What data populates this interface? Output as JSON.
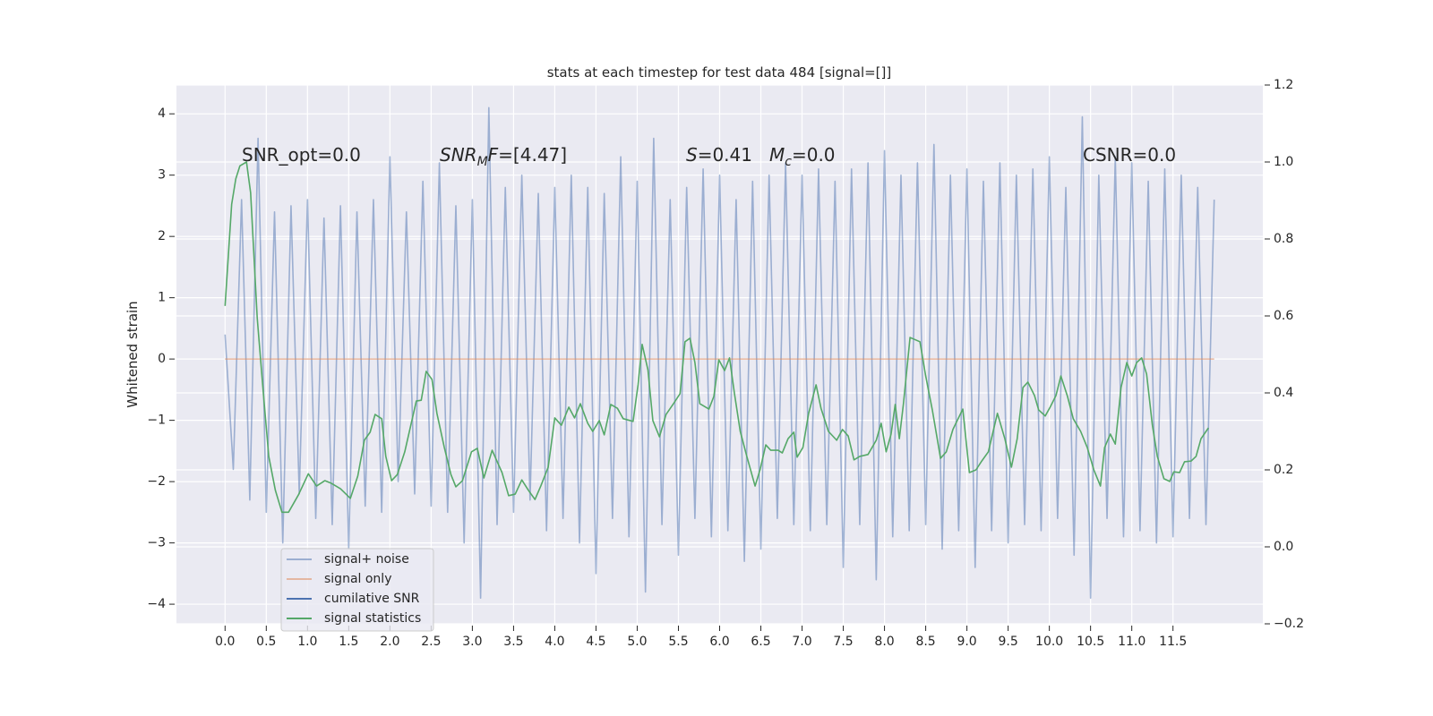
{
  "chart_data": {
    "type": "line",
    "title": "stats at each timestep for test data 484 [signal=[]]",
    "ylabel": "Whitened strain",
    "annotations": [
      [
        "SNR_opt=0.0"
      ],
      [
        "SNR",
        "M",
        "F",
        "=[4.47]"
      ],
      [
        "S",
        "=0.41"
      ],
      [
        "M",
        "c",
        "=0.0"
      ],
      [
        "CSNR=0.0"
      ]
    ],
    "xlim": [
      -0.59,
      12.59
    ],
    "ylim": [
      -4.32,
      4.47
    ],
    "y2lim": [
      -0.2,
      1.2
    ],
    "xticks": [
      {
        "value": 0,
        "label": "0.0"
      },
      {
        "value": 0.5,
        "label": "0.5"
      },
      {
        "value": 1,
        "label": "1.0"
      },
      {
        "value": 1.5,
        "label": "1.5"
      },
      {
        "value": 2,
        "label": "2.0"
      },
      {
        "value": 2.5,
        "label": "2.5"
      },
      {
        "value": 3,
        "label": "3.0"
      },
      {
        "value": 3.5,
        "label": "3.5"
      },
      {
        "value": 4,
        "label": "4.0"
      },
      {
        "value": 4.5,
        "label": "4.5"
      },
      {
        "value": 5,
        "label": "5.0"
      },
      {
        "value": 5.5,
        "label": "5.5"
      },
      {
        "value": 6,
        "label": "6.0"
      },
      {
        "value": 6.5,
        "label": "6.5"
      },
      {
        "value": 7,
        "label": "7.0"
      },
      {
        "value": 7.5,
        "label": "7.5"
      },
      {
        "value": 8,
        "label": "8.0"
      },
      {
        "value": 8.5,
        "label": "8.5"
      },
      {
        "value": 9,
        "label": "9.0"
      },
      {
        "value": 9.5,
        "label": "9.5"
      },
      {
        "value": 10,
        "label": "10.0"
      },
      {
        "value": 10.5,
        "label": "10.5"
      },
      {
        "value": 11,
        "label": "11.0"
      },
      {
        "value": 11.5,
        "label": "11.5"
      }
    ],
    "yticks": [
      {
        "value": -4,
        "label": "−4"
      },
      {
        "value": -3,
        "label": "−3"
      },
      {
        "value": -2,
        "label": "−2"
      },
      {
        "value": -1,
        "label": "−1"
      },
      0,
      1,
      2,
      3,
      4
    ],
    "y2ticks": [
      {
        "value": -0.2,
        "label": "−0.2"
      },
      {
        "value": 0,
        "label": "0.0"
      },
      {
        "value": 0.2,
        "label": "0.2"
      },
      {
        "value": 0.4,
        "label": "0.4"
      },
      {
        "value": 0.6,
        "label": "0.6"
      },
      {
        "value": 0.8,
        "label": "0.8"
      },
      {
        "value": 1,
        "label": "1.0"
      },
      {
        "value": 1.2,
        "label": "1.2"
      }
    ],
    "grid": true,
    "legend": "lower left",
    "series": [
      {
        "name": "signal+ noise",
        "color": "#4c72b0",
        "alpha": 0.5,
        "x": [
          0,
          0.1,
          0.2,
          0.3,
          0.4,
          0.5,
          0.6,
          0.7,
          0.8,
          0.9,
          1,
          1.1,
          1.2,
          1.3,
          1.4,
          1.5,
          1.6,
          1.7,
          1.8,
          1.9,
          2,
          2.1,
          2.2,
          2.3,
          2.4,
          2.5,
          2.6,
          2.7,
          2.8,
          2.9,
          3,
          3.1,
          3.2,
          3.3,
          3.4,
          3.5,
          3.6,
          3.7,
          3.8,
          3.9,
          4,
          4.1,
          4.2,
          4.3,
          4.4,
          4.5,
          4.6,
          4.7,
          4.8,
          4.9,
          5,
          5.1,
          5.2,
          5.3,
          5.4,
          5.5,
          5.6,
          5.7,
          5.8,
          5.9,
          6,
          6.1,
          6.2,
          6.3,
          6.4,
          6.5,
          6.6,
          6.7,
          6.8,
          6.9,
          7,
          7.1,
          7.2,
          7.3,
          7.4,
          7.5,
          7.6,
          7.7,
          7.8,
          7.9,
          8,
          8.1,
          8.2,
          8.3,
          8.4,
          8.5,
          8.6,
          8.7,
          8.8,
          8.9,
          9,
          9.1,
          9.2,
          9.3,
          9.4,
          9.5,
          9.6,
          9.7,
          9.8,
          9.9,
          10,
          10.1,
          10.2,
          10.3,
          10.4,
          10.5,
          10.6,
          10.7,
          10.8,
          10.9,
          11,
          11.1,
          11.2,
          11.3,
          11.4,
          11.5,
          11.6,
          11.7,
          11.8,
          11.9,
          12
        ],
        "values": [
          0.4,
          -1.8,
          2.6,
          -2.3,
          3.6,
          -2.5,
          2.4,
          -3.0,
          2.5,
          -2.2,
          2.6,
          -2.6,
          2.3,
          -2.7,
          2.5,
          -3.1,
          2.4,
          -2.4,
          2.6,
          -2.5,
          3.3,
          -2.0,
          2.4,
          -2.2,
          2.9,
          -2.4,
          3.2,
          -2.5,
          2.5,
          -3.0,
          2.6,
          -3.9,
          4.1,
          -2.7,
          2.8,
          -2.5,
          3.0,
          -2.3,
          2.7,
          -2.8,
          2.8,
          -2.6,
          3.0,
          -3.0,
          2.8,
          -3.5,
          2.7,
          -2.6,
          3.3,
          -2.9,
          2.9,
          -3.8,
          3.6,
          -2.7,
          2.6,
          -3.2,
          2.8,
          -2.6,
          3.1,
          -2.9,
          3.0,
          -2.8,
          2.6,
          -3.3,
          2.9,
          -3.1,
          3.0,
          -2.6,
          3.2,
          -2.7,
          3.0,
          -2.8,
          3.1,
          -2.7,
          2.9,
          -3.4,
          3.1,
          -2.7,
          3.2,
          -3.6,
          3.4,
          -2.9,
          3.0,
          -2.8,
          3.2,
          -2.7,
          3.5,
          -3.1,
          3.0,
          -2.8,
          3.1,
          -3.4,
          2.9,
          -2.8,
          3.2,
          -3.0,
          3.0,
          -2.7,
          3.1,
          -2.8,
          3.3,
          -2.6,
          2.8,
          -3.2,
          3.95,
          -3.9,
          3.0,
          -2.6,
          3.3,
          -2.9,
          3.2,
          -2.8,
          2.9,
          -3.0,
          3.1,
          -2.9,
          3.0,
          -2.6,
          2.8,
          -2.7,
          2.6
        ]
      },
      {
        "name": "signal only",
        "color": "#dd8452",
        "alpha": 0.5,
        "x": [
          0,
          12
        ],
        "values": [
          0,
          0
        ]
      },
      {
        "name": "cumilative SNR",
        "color": "#4c72b0",
        "alpha": 1,
        "x": [],
        "values": []
      },
      {
        "name": "signal statistics",
        "color": "#55a868",
        "alpha": 1,
        "axis": "y2",
        "x": [
          0,
          0.08,
          0.13,
          0.18,
          0.26,
          0.31,
          0.39,
          0.46,
          0.53,
          0.61,
          0.69,
          0.77,
          0.89,
          1.01,
          1.11,
          1.21,
          1.29,
          1.4,
          1.52,
          1.61,
          1.69,
          1.76,
          1.82,
          1.9,
          1.95,
          2.02,
          2.09,
          2.18,
          2.32,
          2.38,
          2.44,
          2.51,
          2.57,
          2.66,
          2.74,
          2.8,
          2.88,
          2.99,
          3.06,
          3.14,
          3.24,
          3.36,
          3.44,
          3.52,
          3.6,
          3.68,
          3.76,
          3.83,
          3.92,
          4.0,
          4.08,
          4.17,
          4.24,
          4.31,
          4.4,
          4.46,
          4.54,
          4.6,
          4.68,
          4.76,
          4.83,
          4.95,
          5.01,
          5.06,
          5.13,
          5.19,
          5.27,
          5.35,
          5.44,
          5.52,
          5.58,
          5.64,
          5.7,
          5.76,
          5.87,
          5.93,
          5.99,
          6.06,
          6.12,
          6.18,
          6.25,
          6.33,
          6.43,
          6.49,
          6.56,
          6.62,
          6.71,
          6.76,
          6.83,
          6.9,
          6.94,
          7.01,
          7.08,
          7.17,
          7.23,
          7.32,
          7.42,
          7.49,
          7.56,
          7.63,
          7.7,
          7.8,
          7.9,
          7.96,
          8.02,
          8.08,
          8.13,
          8.18,
          8.23,
          8.31,
          8.43,
          8.5,
          8.58,
          8.68,
          8.75,
          8.83,
          8.95,
          9.03,
          9.11,
          9.18,
          9.26,
          9.37,
          9.46,
          9.54,
          9.61,
          9.68,
          9.74,
          9.82,
          9.87,
          9.95,
          10.01,
          10.08,
          10.14,
          10.22,
          10.29,
          10.38,
          10.46,
          10.54,
          10.62,
          10.67,
          10.74,
          10.8,
          10.87,
          10.94,
          11.0,
          11.06,
          11.12,
          11.18,
          11.25,
          11.31,
          11.39,
          11.46,
          11.51,
          11.58,
          11.64,
          11.72,
          11.78,
          11.84,
          11.93
        ],
        "values": [
          0.626,
          0.89,
          0.956,
          0.99,
          1.0,
          0.92,
          0.595,
          0.41,
          0.235,
          0.147,
          0.09,
          0.09,
          0.135,
          0.19,
          0.158,
          0.172,
          0.165,
          0.151,
          0.126,
          0.184,
          0.277,
          0.298,
          0.344,
          0.333,
          0.235,
          0.172,
          0.188,
          0.247,
          0.379,
          0.381,
          0.456,
          0.435,
          0.347,
          0.258,
          0.188,
          0.156,
          0.172,
          0.247,
          0.256,
          0.179,
          0.251,
          0.193,
          0.133,
          0.137,
          0.174,
          0.147,
          0.123,
          0.158,
          0.207,
          0.335,
          0.316,
          0.363,
          0.335,
          0.372,
          0.321,
          0.3,
          0.328,
          0.291,
          0.37,
          0.36,
          0.333,
          0.326,
          0.421,
          0.526,
          0.46,
          0.328,
          0.286,
          0.344,
          0.372,
          0.398,
          0.533,
          0.542,
          0.479,
          0.372,
          0.358,
          0.391,
          0.486,
          0.458,
          0.491,
          0.398,
          0.3,
          0.235,
          0.158,
          0.2,
          0.265,
          0.251,
          0.251,
          0.244,
          0.281,
          0.298,
          0.233,
          0.258,
          0.347,
          0.421,
          0.36,
          0.3,
          0.277,
          0.305,
          0.288,
          0.226,
          0.235,
          0.24,
          0.277,
          0.321,
          0.247,
          0.293,
          0.37,
          0.281,
          0.372,
          0.544,
          0.533,
          0.444,
          0.356,
          0.23,
          0.247,
          0.305,
          0.358,
          0.193,
          0.2,
          0.223,
          0.247,
          0.347,
          0.281,
          0.207,
          0.281,
          0.414,
          0.428,
          0.393,
          0.356,
          0.34,
          0.363,
          0.393,
          0.444,
          0.391,
          0.333,
          0.3,
          0.258,
          0.2,
          0.158,
          0.258,
          0.293,
          0.267,
          0.414,
          0.479,
          0.444,
          0.479,
          0.491,
          0.449,
          0.316,
          0.235,
          0.177,
          0.17,
          0.195,
          0.193,
          0.221,
          0.223,
          0.235,
          0.281,
          0.309
        ]
      }
    ]
  }
}
